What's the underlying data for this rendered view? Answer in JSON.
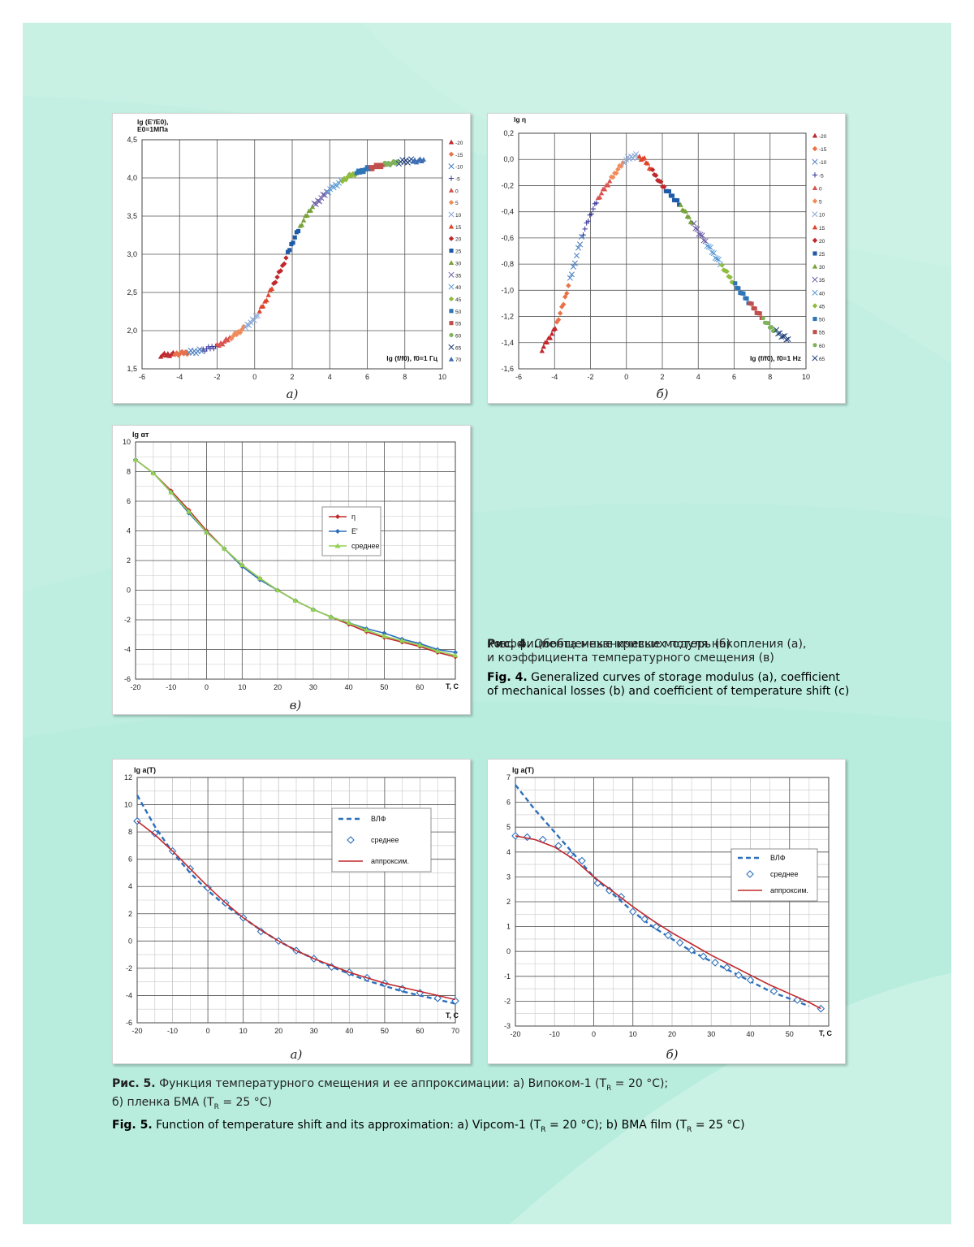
{
  "colors": {
    "page_bg": "#bfeee0",
    "panel_bg": "#ffffff",
    "grid": "#555555",
    "grid_minor": "#c8c8c8"
  },
  "fig4_caption": {
    "ru_label": "Рис. 4.",
    "ru_lines": [
      "Обобщенные кривые модуля накопления (а),",
      "коэффициента механических потерь (б)",
      "и коэффициента температурного смещения (в)"
    ],
    "en_label": "Fig. 4.",
    "en_lines": [
      "Generalized curves of storage modulus (a), coefficient",
      "of mechanical losses (b) and coefficient of temperature shift (c)"
    ]
  },
  "fig5_caption": {
    "ru_label": "Рис. 5.",
    "ru_text": "Функция температурного смещения и ее аппроксимации: а) Випоком-1 (T",
    "ru_text2": " = 20 °С);",
    "ru_line2a": "б) пленка БМА (T",
    "ru_line2b": " = 25 °С)",
    "en_label": "Fig. 5.",
    "en_text": "Function of temperature shift and its approximation: a) Vipcom-1 (T",
    "en_text2": " = 20 °C); b) BMA film (T",
    "en_text3": " = 25 °C)",
    "subscript": "R"
  },
  "chart_data": [
    {
      "id": "fig4a",
      "type": "scatter",
      "subcaption": "а)",
      "ylabel_lines": [
        "lg (E'/E0),",
        "E0=1МПа"
      ],
      "xlabel": "lg (f/f0), f0=1 Гц",
      "xlim": [
        -6,
        10
      ],
      "ylim": [
        1.5,
        4.5
      ],
      "xticks": [
        -6,
        -4,
        -2,
        0,
        2,
        4,
        6,
        8,
        10
      ],
      "yticks": [
        1.5,
        2.0,
        2.5,
        3.0,
        3.5,
        4.0,
        4.5
      ],
      "ytick_labels": [
        "1,5",
        "2,0",
        "2,5",
        "3,0",
        "3,5",
        "4,0",
        "4,5"
      ],
      "legend": [
        "-20",
        "-15",
        "-10",
        "-5",
        "0",
        "5",
        "10",
        "15",
        "20",
        "25",
        "30",
        "35",
        "40",
        "45",
        "50",
        "55",
        "60",
        "65",
        "70"
      ],
      "curve": [
        [
          -5,
          1.68
        ],
        [
          -4,
          1.7
        ],
        [
          -3,
          1.73
        ],
        [
          -2,
          1.8
        ],
        [
          -1,
          1.95
        ],
        [
          0,
          2.15
        ],
        [
          0.5,
          2.35
        ],
        [
          1,
          2.6
        ],
        [
          1.5,
          2.85
        ],
        [
          2,
          3.15
        ],
        [
          2.5,
          3.4
        ],
        [
          3,
          3.6
        ],
        [
          4,
          3.85
        ],
        [
          5,
          4.02
        ],
        [
          6,
          4.12
        ],
        [
          7,
          4.18
        ],
        [
          8,
          4.22
        ],
        [
          9,
          4.23
        ]
      ]
    },
    {
      "id": "fig4b",
      "type": "scatter",
      "subcaption": "б)",
      "ylabel_lines": [
        "lg η"
      ],
      "xlabel": "lg (f/f0), f0=1 Hz",
      "xlim": [
        -6,
        10
      ],
      "ylim": [
        -1.6,
        0.2
      ],
      "xticks": [
        -6,
        -4,
        -2,
        0,
        2,
        4,
        6,
        8,
        10
      ],
      "yticks": [
        0.2,
        0.0,
        -0.2,
        -0.4,
        -0.6,
        -0.8,
        -1.0,
        -1.2,
        -1.4,
        -1.6
      ],
      "ytick_labels": [
        "0,2",
        "0,0",
        "-0,2",
        "-0,4",
        "-0,6",
        "-0,8",
        "-1,0",
        "-1,2",
        "-1,4",
        "-1,6"
      ],
      "legend": [
        "-20",
        "-15",
        "-10",
        "-5",
        "0",
        "5",
        "10",
        "15",
        "20",
        "25",
        "30",
        "35",
        "40",
        "45",
        "50",
        "55",
        "60",
        "65"
      ],
      "curve": [
        [
          -4.7,
          -1.45
        ],
        [
          -4,
          -1.3
        ],
        [
          -3.5,
          -1.1
        ],
        [
          -3,
          -0.85
        ],
        [
          -2.5,
          -0.6
        ],
        [
          -2,
          -0.42
        ],
        [
          -1.5,
          -0.28
        ],
        [
          -1,
          -0.18
        ],
        [
          -0.5,
          -0.08
        ],
        [
          0,
          0.0
        ],
        [
          0.5,
          0.03
        ],
        [
          1,
          0.0
        ],
        [
          1.5,
          -0.1
        ],
        [
          2,
          -0.2
        ],
        [
          3,
          -0.35
        ],
        [
          4,
          -0.55
        ],
        [
          5,
          -0.75
        ],
        [
          6,
          -0.95
        ],
        [
          7,
          -1.12
        ],
        [
          8,
          -1.28
        ],
        [
          9,
          -1.38
        ]
      ]
    },
    {
      "id": "fig4c",
      "type": "line",
      "subcaption": "в)",
      "ylabel": "lg αт",
      "xlabel": "T, C",
      "xlim": [
        -20,
        70
      ],
      "ylim": [
        -6,
        10
      ],
      "xticks": [
        -20,
        -10,
        0,
        10,
        20,
        30,
        40,
        50,
        60
      ],
      "yticks": [
        10,
        8,
        6,
        4,
        2,
        0,
        -2,
        -4,
        -6
      ],
      "x": [
        -20,
        -15,
        -10,
        -5,
        0,
        5,
        10,
        15,
        20,
        25,
        30,
        35,
        40,
        45,
        50,
        55,
        60,
        65,
        70
      ],
      "series": [
        {
          "name": "η",
          "color": "#c0282d",
          "values": [
            8.8,
            7.9,
            6.7,
            5.4,
            4.0,
            2.8,
            1.7,
            0.8,
            0.0,
            -0.7,
            -1.3,
            -1.8,
            -2.3,
            -2.8,
            -3.2,
            -3.5,
            -3.8,
            -4.2,
            -4.5
          ]
        },
        {
          "name": "E'",
          "color": "#2c6fbb",
          "values": [
            8.8,
            7.9,
            6.6,
            5.2,
            3.9,
            2.8,
            1.6,
            0.7,
            0.0,
            -0.7,
            -1.3,
            -1.8,
            -2.2,
            -2.6,
            -2.9,
            -3.3,
            -3.6,
            -4.0,
            -4.2
          ]
        },
        {
          "name": "среднее",
          "color": "#92d050",
          "values": [
            8.8,
            7.9,
            6.6,
            5.3,
            3.9,
            2.8,
            1.7,
            0.8,
            0.0,
            -0.7,
            -1.3,
            -1.8,
            -2.2,
            -2.7,
            -3.1,
            -3.4,
            -3.7,
            -4.1,
            -4.4
          ]
        }
      ]
    },
    {
      "id": "fig5a",
      "type": "line",
      "subcaption": "а)",
      "ylabel": "lg a(T)",
      "xlabel": "T, C",
      "xlim": [
        -20,
        70
      ],
      "ylim": [
        -6,
        12
      ],
      "xticks": [
        -20,
        -10,
        0,
        10,
        20,
        30,
        40,
        50,
        60,
        70
      ],
      "yticks": [
        12,
        10,
        8,
        6,
        4,
        2,
        0,
        -2,
        -4,
        -6
      ],
      "series": [
        {
          "name": "ВЛФ",
          "color": "#2c6fbb",
          "style": "dashed",
          "x": [
            -20,
            -15,
            -10,
            -5,
            0,
            5,
            10,
            15,
            20,
            25,
            30,
            35,
            40,
            45,
            50,
            55,
            60,
            65,
            70
          ],
          "values": [
            10.7,
            8.4,
            6.5,
            5.0,
            3.7,
            2.6,
            1.7,
            0.8,
            0.0,
            -0.7,
            -1.3,
            -1.9,
            -2.4,
            -2.9,
            -3.3,
            -3.7,
            -4.0,
            -4.3,
            -4.6
          ]
        },
        {
          "name": "среднее",
          "color": "#2c6fbb",
          "style": "diamond",
          "x": [
            -20,
            -15,
            -10,
            -5,
            0,
            5,
            10,
            15,
            20,
            25,
            30,
            35,
            40,
            45,
            50,
            55,
            60,
            65,
            70
          ],
          "values": [
            8.8,
            7.9,
            6.6,
            5.3,
            3.9,
            2.8,
            1.7,
            0.7,
            0.0,
            -0.7,
            -1.3,
            -1.9,
            -2.3,
            -2.7,
            -3.1,
            -3.5,
            -3.8,
            -4.2,
            -4.4
          ]
        },
        {
          "name": "аппроксим.",
          "color": "#c0282d",
          "style": "solid",
          "x": [
            -20,
            -15,
            -10,
            -5,
            0,
            5,
            10,
            15,
            20,
            25,
            30,
            35,
            40,
            45,
            50,
            55,
            60,
            65,
            70
          ],
          "values": [
            8.8,
            7.8,
            6.6,
            5.3,
            4.0,
            2.8,
            1.7,
            0.8,
            0.0,
            -0.7,
            -1.3,
            -1.8,
            -2.3,
            -2.7,
            -3.1,
            -3.4,
            -3.7,
            -4.0,
            -4.3
          ]
        }
      ]
    },
    {
      "id": "fig5b",
      "type": "line",
      "subcaption": "б)",
      "ylabel": "lg a(T)",
      "xlabel": "T, C",
      "xlim": [
        -20,
        60
      ],
      "ylim": [
        -3,
        7
      ],
      "xticks": [
        -20,
        -10,
        0,
        10,
        20,
        30,
        40,
        50
      ],
      "yticks": [
        7,
        6,
        5,
        4,
        3,
        2,
        1,
        0,
        -1,
        -2,
        -3
      ],
      "series": [
        {
          "name": "ВЛФ",
          "color": "#2c6fbb",
          "style": "dashed",
          "x": [
            -20,
            -15,
            -10,
            -5,
            0,
            5,
            10,
            15,
            20,
            25,
            30,
            35,
            40,
            45,
            50,
            55
          ],
          "values": [
            6.7,
            5.7,
            4.8,
            3.9,
            3.0,
            2.3,
            1.6,
            1.0,
            0.5,
            0.0,
            -0.4,
            -0.8,
            -1.2,
            -1.6,
            -1.9,
            -2.2
          ]
        },
        {
          "name": "среднее",
          "color": "#2c6fbb",
          "style": "diamond",
          "x": [
            -20,
            -17,
            -13,
            -9,
            -6,
            -3,
            1,
            4,
            7,
            10,
            13,
            16,
            19,
            22,
            25,
            28,
            31,
            34,
            37,
            40,
            46,
            52,
            58
          ],
          "values": [
            4.65,
            4.6,
            4.5,
            4.25,
            3.9,
            3.65,
            2.75,
            2.45,
            2.2,
            1.6,
            1.3,
            1.0,
            0.65,
            0.35,
            0.05,
            -0.2,
            -0.45,
            -0.65,
            -0.95,
            -1.15,
            -1.6,
            -1.95,
            -2.3
          ]
        },
        {
          "name": "аппроксим.",
          "color": "#c0282d",
          "style": "solid",
          "x": [
            -20,
            -15,
            -10,
            -5,
            0,
            5,
            10,
            15,
            20,
            25,
            30,
            35,
            40,
            45,
            50,
            55,
            58
          ],
          "values": [
            4.65,
            4.5,
            4.2,
            3.7,
            3.0,
            2.4,
            1.8,
            1.25,
            0.75,
            0.3,
            -0.15,
            -0.55,
            -0.95,
            -1.35,
            -1.7,
            -2.05,
            -2.3
          ]
        }
      ]
    }
  ]
}
